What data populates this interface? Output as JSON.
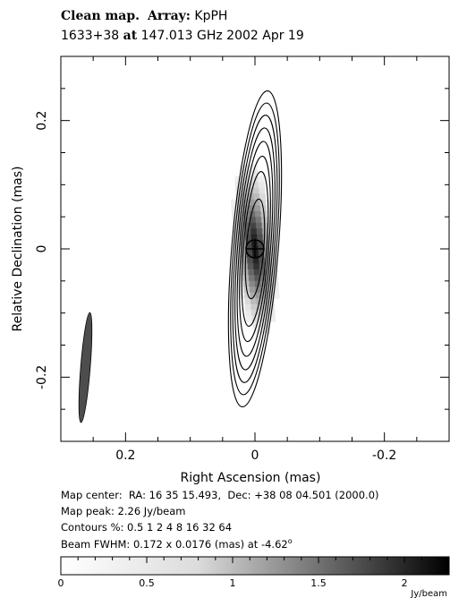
{
  "header": {
    "title_bold": "Clean map.",
    "array_label": "Array:",
    "array_value": "KpPH",
    "source_name": "1633+38",
    "at_word": "at",
    "freq_date": "147.013 GHz 2002 Apr 19"
  },
  "chart_data": {
    "type": "contour",
    "xlabel": "Right Ascension   (mas)",
    "ylabel": "Relative Declination   (mas)",
    "xlim": [
      0.3,
      -0.3
    ],
    "ylim": [
      -0.3,
      0.3
    ],
    "x_ticks": [
      {
        "value": 0.2,
        "label": "0.2"
      },
      {
        "value": 0.0,
        "label": "0"
      },
      {
        "value": -0.2,
        "label": "-0.2"
      }
    ],
    "y_ticks": [
      {
        "value": 0.2,
        "label": "0.2"
      },
      {
        "value": 0.0,
        "label": "0"
      },
      {
        "value": -0.2,
        "label": "-0.2"
      }
    ],
    "peak_position": [
      0.0,
      0.0
    ],
    "peak_value": 2.26,
    "contour_levels_percent": [
      0.5,
      1,
      2,
      4,
      8,
      16,
      32,
      64
    ],
    "contour_extents_mas": [
      {
        "level": 0.5,
        "rx": 0.036,
        "ry": 0.247
      },
      {
        "level": 1,
        "rx": 0.033,
        "ry": 0.228
      },
      {
        "level": 2,
        "rx": 0.03,
        "ry": 0.209
      },
      {
        "level": 4,
        "rx": 0.027,
        "ry": 0.189
      },
      {
        "level": 8,
        "rx": 0.024,
        "ry": 0.168
      },
      {
        "level": 16,
        "rx": 0.021,
        "ry": 0.145
      },
      {
        "level": 32,
        "rx": 0.018,
        "ry": 0.121
      },
      {
        "level": 64,
        "rx": 0.0135,
        "ry": 0.078
      }
    ],
    "contour_tilt_deg": -4.62,
    "beam": {
      "center": [
        0.262,
        -0.185
      ],
      "major_mas": 0.172,
      "minor_mas": 0.0176,
      "pa_deg": -4.62,
      "color": "#4d4d4d"
    },
    "colorbar": {
      "min": 0,
      "max": 2.26,
      "ticks": [
        {
          "value": 0,
          "label": "0"
        },
        {
          "value": 0.5,
          "label": "0.5"
        },
        {
          "value": 1,
          "label": "1"
        },
        {
          "value": 1.5,
          "label": "1.5"
        },
        {
          "value": 2,
          "label": "2"
        }
      ],
      "unit": "Jy/beam",
      "low_color": "#ffffff",
      "high_color": "#000000"
    },
    "grid": false
  },
  "info": {
    "map_center": "Map center:  RA: 16 35 15.493,  Dec: +38 08 04.501 (2000.0)",
    "map_peak": "Map peak: 2.26 Jy/beam",
    "contours": "Contours %: 0.5 1 2 4 8 16 32 64",
    "beam_fwhm_prefix": "Beam FWHM: 0.172 x 0.0176 (mas) at -4.62",
    "degree_symbol": "o"
  }
}
